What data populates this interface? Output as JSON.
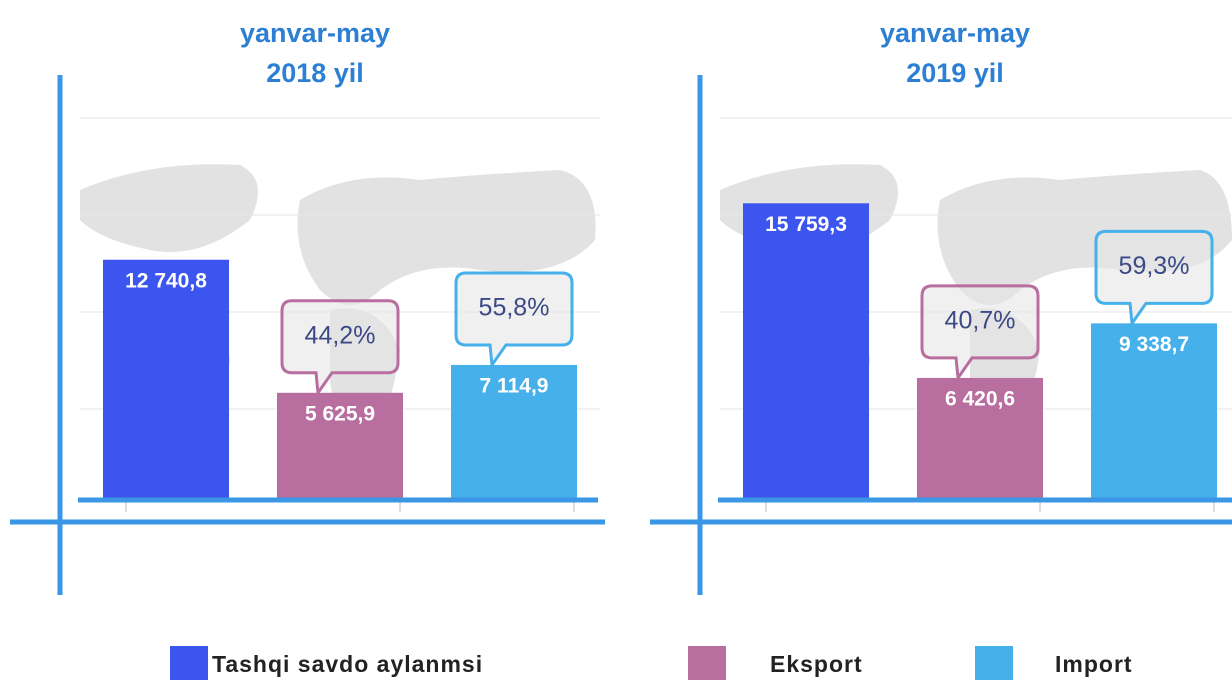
{
  "legend": [
    {
      "name": "Tashqi savdo aylanmsi",
      "color": "#3d55ef"
    },
    {
      "name": "Eksport",
      "color": "#b86f9f"
    },
    {
      "name": "Import",
      "color": "#45b0ea"
    }
  ],
  "chart_data": [
    {
      "type": "bar",
      "title": [
        "yanvar-may",
        "2018 yil"
      ],
      "categories": [
        null,
        null,
        null
      ],
      "values": [
        12740.8,
        5625.9,
        7114.9
      ],
      "value_labels": [
        "12 740,8",
        "5 625,9",
        "7 114,9"
      ],
      "annotations": [
        null,
        "44,2%",
        "55,8%"
      ],
      "ylim": [
        0,
        20000
      ],
      "grid": true
    },
    {
      "type": "bar",
      "title": [
        "yanvar-may",
        "2019 yil"
      ],
      "categories": [
        null,
        null,
        null
      ],
      "values": [
        15759.3,
        6420.6,
        9338.7
      ],
      "value_labels": [
        "15 759,3",
        "6 420,6",
        "9 338,7"
      ],
      "annotations": [
        null,
        "40,7%",
        "59,3%"
      ],
      "ylim": [
        0,
        20000
      ],
      "grid": true
    }
  ]
}
